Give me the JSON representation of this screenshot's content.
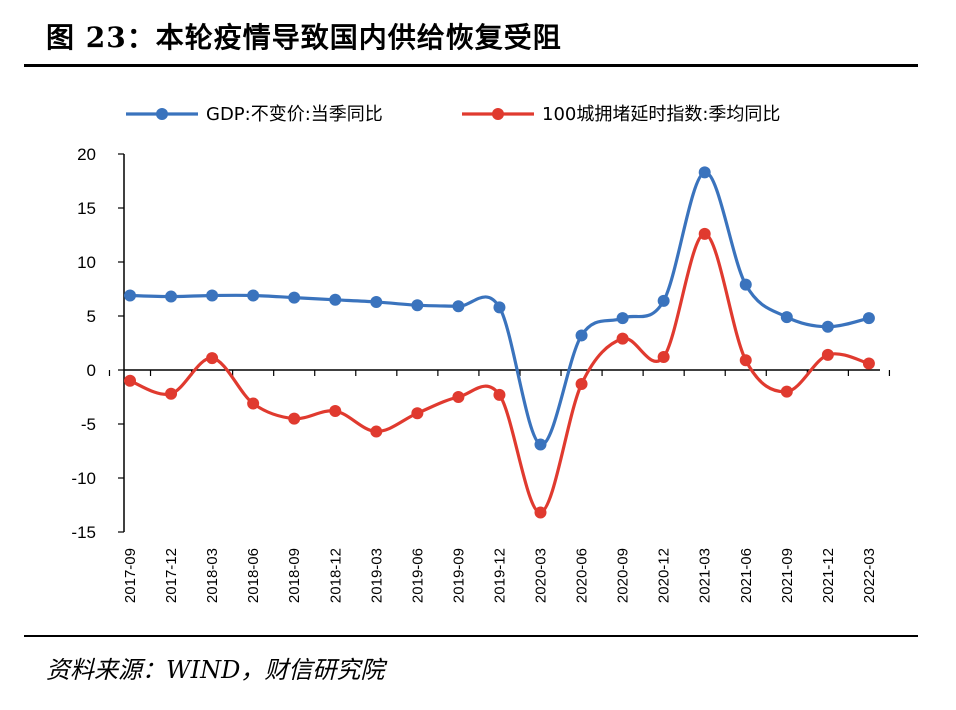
{
  "figure": {
    "title": "图 23：本轮疫情导致国内供给恢复受阻",
    "source": "资料来源：WIND，财信研究院"
  },
  "chart_data": {
    "type": "line",
    "title": "图 23：本轮疫情导致国内供给恢复受阻",
    "xlabel": "",
    "ylabel": "",
    "ylim": [
      -15,
      20
    ],
    "yticks": [
      -15,
      -10,
      -5,
      0,
      5,
      10,
      15,
      20
    ],
    "legend_position": "top",
    "grid": false,
    "smooth": true,
    "categories": [
      "2017-09",
      "2017-12",
      "2018-03",
      "2018-06",
      "2018-09",
      "2018-12",
      "2019-03",
      "2019-06",
      "2019-09",
      "2019-12",
      "2020-03",
      "2020-06",
      "2020-09",
      "2020-12",
      "2021-03",
      "2021-06",
      "2021-09",
      "2021-12",
      "2022-03"
    ],
    "series": [
      {
        "name": "GDP:不变价:当季同比",
        "color": "#3a73bd",
        "values": [
          6.9,
          6.8,
          6.9,
          6.9,
          6.7,
          6.5,
          6.3,
          6.0,
          5.9,
          5.8,
          -6.9,
          3.2,
          4.8,
          6.4,
          18.3,
          7.9,
          4.9,
          4.0,
          4.8
        ]
      },
      {
        "name": "100城拥堵延时指数:季均同比",
        "color": "#e03a2f",
        "values": [
          -1.0,
          -2.2,
          1.1,
          -3.1,
          -4.5,
          -3.8,
          -5.7,
          -4.0,
          -2.5,
          -2.3,
          -13.2,
          -1.3,
          2.9,
          1.2,
          12.6,
          0.9,
          -2.0,
          1.4,
          0.6
        ]
      }
    ]
  }
}
